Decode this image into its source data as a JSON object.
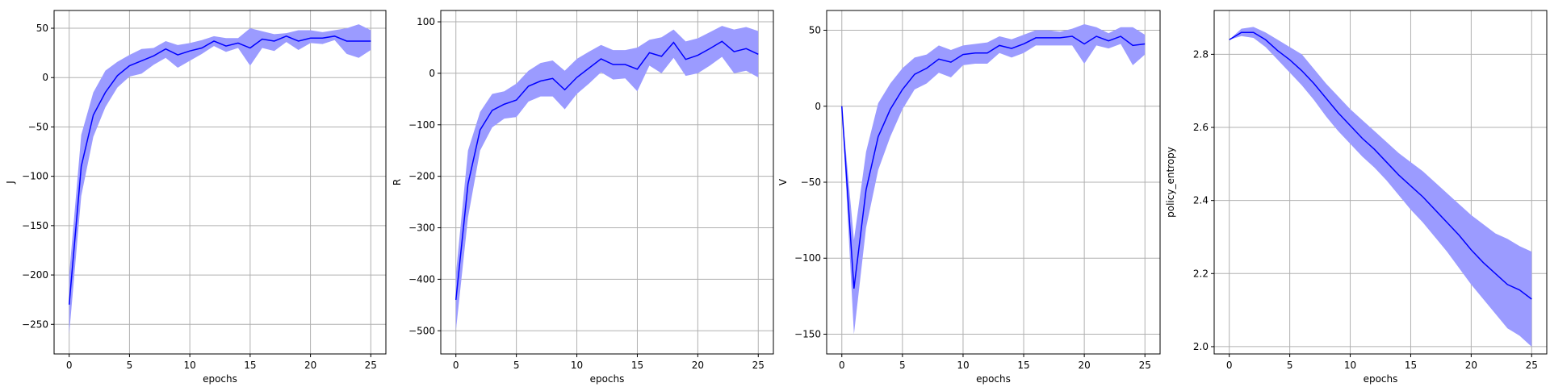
{
  "chart_data": [
    {
      "type": "line",
      "xlabel": "epochs",
      "ylabel": "J",
      "xlim": [
        -1.25,
        26.25
      ],
      "ylim": [
        -280,
        68
      ],
      "xticks": [
        0,
        5,
        10,
        15,
        20,
        25
      ],
      "xtick_labels": [
        "0",
        "5",
        "10",
        "15",
        "20",
        "25"
      ],
      "yticks": [
        -250,
        -200,
        -150,
        -100,
        -50,
        0,
        50
      ],
      "ytick_labels": [
        "−250",
        "−200",
        "−150",
        "−100",
        "−50",
        "0",
        "50"
      ],
      "grid": true,
      "colors": {
        "line": "#0000ff",
        "band": "#9b9bff"
      },
      "x": [
        0,
        1,
        2,
        3,
        4,
        5,
        6,
        7,
        8,
        9,
        10,
        11,
        12,
        13,
        14,
        15,
        16,
        17,
        18,
        19,
        20,
        21,
        22,
        23,
        24,
        25
      ],
      "mean": [
        -230,
        -90,
        -38,
        -15,
        2,
        12,
        17,
        22,
        29,
        23,
        27,
        30,
        37,
        32,
        35,
        30,
        39,
        37,
        42,
        37,
        40,
        40,
        42,
        37,
        37,
        37
      ],
      "upper": [
        -200,
        -58,
        -15,
        7,
        16,
        23,
        29,
        30,
        37,
        33,
        35,
        38,
        42,
        40,
        40,
        50,
        47,
        44,
        45,
        48,
        48,
        46,
        48,
        50,
        54,
        48
      ],
      "lower": [
        -260,
        -120,
        -60,
        -30,
        -10,
        1,
        4,
        13,
        20,
        10,
        17,
        24,
        32,
        26,
        30,
        12,
        30,
        27,
        36,
        28,
        35,
        34,
        38,
        24,
        20,
        28
      ]
    },
    {
      "type": "line",
      "xlabel": "epochs",
      "ylabel": "R",
      "xlim": [
        -1.25,
        26.25
      ],
      "ylim": [
        -545,
        122
      ],
      "xticks": [
        0,
        5,
        10,
        15,
        20,
        25
      ],
      "xtick_labels": [
        "0",
        "5",
        "10",
        "15",
        "20",
        "25"
      ],
      "yticks": [
        -500,
        -400,
        -300,
        -200,
        -100,
        0,
        100
      ],
      "ytick_labels": [
        "−500",
        "−400",
        "−300",
        "−200",
        "−100",
        "0",
        "100"
      ],
      "grid": true,
      "colors": {
        "line": "#0000ff",
        "band": "#9b9bff"
      },
      "x": [
        0,
        1,
        2,
        3,
        4,
        5,
        6,
        7,
        8,
        9,
        10,
        11,
        12,
        13,
        14,
        15,
        16,
        17,
        18,
        19,
        20,
        21,
        22,
        23,
        24,
        25
      ],
      "mean": [
        -440,
        -215,
        -110,
        -72,
        -60,
        -52,
        -25,
        -15,
        -10,
        -32,
        -8,
        10,
        28,
        17,
        17,
        8,
        40,
        33,
        60,
        27,
        35,
        48,
        62,
        42,
        48,
        37
      ],
      "upper": [
        -390,
        -150,
        -75,
        -40,
        -35,
        -20,
        5,
        20,
        25,
        5,
        28,
        42,
        55,
        45,
        45,
        50,
        65,
        70,
        85,
        62,
        68,
        80,
        92,
        85,
        90,
        82
      ],
      "lower": [
        -500,
        -280,
        -150,
        -105,
        -88,
        -85,
        -55,
        -45,
        -45,
        -70,
        -40,
        -20,
        2,
        -12,
        -10,
        -35,
        15,
        0,
        30,
        -5,
        0,
        15,
        32,
        0,
        5,
        -8
      ]
    },
    {
      "type": "line",
      "xlabel": "epochs",
      "ylabel": "V",
      "xlim": [
        -1.25,
        26.25
      ],
      "ylim": [
        -163,
        63
      ],
      "xticks": [
        0,
        5,
        10,
        15,
        20,
        25
      ],
      "xtick_labels": [
        "0",
        "5",
        "10",
        "15",
        "20",
        "25"
      ],
      "yticks": [
        -150,
        -100,
        -50,
        0,
        50
      ],
      "ytick_labels": [
        "−150",
        "−100",
        "−50",
        "0",
        "50"
      ],
      "grid": true,
      "colors": {
        "line": "#0000ff",
        "band": "#9b9bff"
      },
      "x": [
        0,
        1,
        2,
        3,
        4,
        5,
        6,
        7,
        8,
        9,
        10,
        11,
        12,
        13,
        14,
        15,
        16,
        17,
        18,
        19,
        20,
        21,
        22,
        23,
        24,
        25
      ],
      "mean": [
        0,
        -120,
        -55,
        -20,
        -2,
        11,
        21,
        25,
        31,
        29,
        34,
        35,
        35,
        40,
        38,
        41,
        45,
        45,
        45,
        46,
        41,
        46,
        43,
        46,
        40,
        41
      ],
      "upper": [
        0,
        -88,
        -30,
        2,
        15,
        25,
        32,
        34,
        40,
        37,
        40,
        41,
        42,
        46,
        44,
        47,
        50,
        50,
        49,
        51,
        54,
        52,
        48,
        52,
        52,
        47
      ],
      "lower": [
        0,
        -150,
        -80,
        -42,
        -20,
        -2,
        11,
        15,
        22,
        19,
        27,
        28,
        28,
        35,
        32,
        35,
        40,
        40,
        40,
        40,
        28,
        40,
        38,
        41,
        27,
        34
      ]
    },
    {
      "type": "line",
      "xlabel": "epochs",
      "ylabel": "policy_entropy",
      "xlim": [
        -1.25,
        26.25
      ],
      "ylim": [
        1.98,
        2.92
      ],
      "xticks": [
        0,
        5,
        10,
        15,
        20,
        25
      ],
      "xtick_labels": [
        "0",
        "5",
        "10",
        "15",
        "20",
        "25"
      ],
      "yticks": [
        2.0,
        2.2,
        2.4,
        2.6,
        2.8
      ],
      "ytick_labels": [
        "2.0",
        "2.2",
        "2.4",
        "2.6",
        "2.8"
      ],
      "grid": true,
      "colors": {
        "line": "#0000ff",
        "band": "#9b9bff"
      },
      "x": [
        0,
        1,
        2,
        3,
        4,
        5,
        6,
        7,
        8,
        9,
        10,
        11,
        12,
        13,
        14,
        15,
        16,
        17,
        18,
        19,
        20,
        21,
        22,
        23,
        24,
        25
      ],
      "mean": [
        2.84,
        2.86,
        2.86,
        2.84,
        2.81,
        2.785,
        2.755,
        2.72,
        2.68,
        2.64,
        2.605,
        2.57,
        2.54,
        2.505,
        2.47,
        2.44,
        2.41,
        2.375,
        2.34,
        2.305,
        2.265,
        2.23,
        2.2,
        2.17,
        2.155,
        2.13
      ],
      "upper": [
        2.84,
        2.87,
        2.875,
        2.86,
        2.84,
        2.82,
        2.8,
        2.76,
        2.72,
        2.685,
        2.65,
        2.62,
        2.59,
        2.56,
        2.53,
        2.505,
        2.48,
        2.45,
        2.42,
        2.39,
        2.36,
        2.335,
        2.31,
        2.295,
        2.275,
        2.26
      ],
      "lower": [
        2.84,
        2.85,
        2.845,
        2.82,
        2.785,
        2.75,
        2.715,
        2.675,
        2.63,
        2.59,
        2.555,
        2.52,
        2.49,
        2.455,
        2.415,
        2.375,
        2.34,
        2.3,
        2.26,
        2.215,
        2.17,
        2.13,
        2.09,
        2.05,
        2.03,
        2.0
      ]
    }
  ]
}
